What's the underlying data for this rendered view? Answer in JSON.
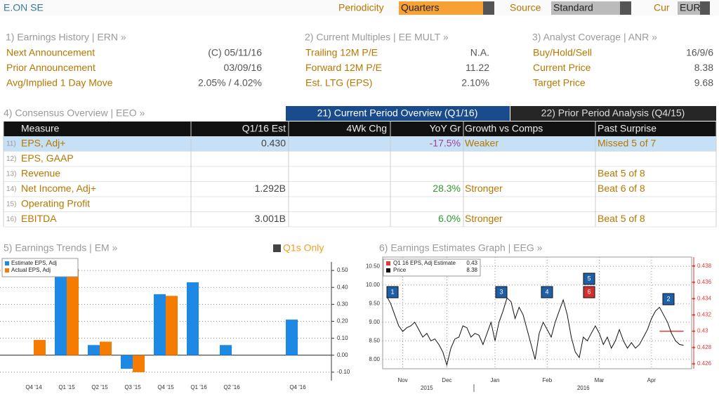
{
  "header": {
    "ticker": "E.ON SE",
    "periodicity_label": "Periodicity",
    "periodicity": "Quarters",
    "source_label": "Source",
    "source": "Standard",
    "cur_label": "Cur",
    "cur": "EUR"
  },
  "sections": [
    {
      "title": "1) Earnings History | ERN »",
      "rows": [
        {
          "label": "Next Announcement",
          "value": "(C)  05/11/16"
        },
        {
          "label": "Prior Announcement",
          "value": "03/09/16"
        },
        {
          "label": "Avg/Implied 1 Day Move",
          "value": "2.05% / 4.02%"
        }
      ]
    },
    {
      "title": "2) Current Multiples | EE MULT »",
      "rows": [
        {
          "label": "Trailing 12M P/E",
          "value": "N.A."
        },
        {
          "label": "Forward 12M P/E",
          "value": "11.22"
        },
        {
          "label": "Est. LTG (EPS)",
          "value": "2.10%"
        }
      ]
    },
    {
      "title": "3) Analyst Coverage | ANR »",
      "rows": [
        {
          "label": "Buy/Hold/Sell",
          "value": "16/9/6"
        },
        {
          "label": "Current Price",
          "value": "8.38"
        },
        {
          "label": "Target Price",
          "value": "9.68"
        }
      ]
    }
  ],
  "consensus": {
    "title": "4) Consensus Overview | EEO »",
    "tabs": [
      "21) Current Period Overview (Q1/16)",
      "22) Prior Period Analysis (Q4/15)"
    ]
  },
  "table": {
    "columns": [
      "Measure",
      "Q1/16 Est",
      "4Wk Chg",
      "YoY Gr",
      "Growth vs Comps",
      "Past Surprise"
    ],
    "rows": [
      {
        "num": "11)",
        "measure": "EPS, Adj+",
        "est": "0.430",
        "yoy": "-17.5%",
        "growth": "Weaker",
        "surprise": "Missed 5 of 7"
      },
      {
        "num": "12)",
        "measure": "EPS, GAAP"
      },
      {
        "num": "13)",
        "measure": "Revenue",
        "surprise": "Beat 5 of 8"
      },
      {
        "num": "14)",
        "measure": "Net Income, Adj+",
        "est": "1.292B",
        "yoy": "28.3%",
        "growth": "Stronger",
        "surprise": "Beat 6 of 8"
      },
      {
        "num": "15)",
        "measure": "Operating Profit"
      },
      {
        "num": "16)",
        "measure": "EBITDA",
        "est": "3.001B",
        "yoy": "6.0%",
        "growth": "Stronger",
        "surprise": "Beat 5 of 8"
      }
    ]
  },
  "chart_data": [
    {
      "type": "bar",
      "title": "5) Earnings Trends | EM »",
      "option": "Q1s Only",
      "categories": [
        "Q4 '14",
        "Q1 '15",
        "Q2 '15",
        "Q3 '15",
        "Q4 '15",
        "Q1 '16",
        "Q2 '16",
        null,
        "Q4 '16"
      ],
      "series": [
        {
          "name": "Estimate EPS, Adj",
          "color": "#1e88e5",
          "values": [
            null,
            0.47,
            0.06,
            -0.08,
            0.36,
            0.43,
            0.06,
            null,
            0.21
          ]
        },
        {
          "name": "Actual EPS, Adj",
          "color": "#f57c00",
          "values": [
            0.09,
            0.51,
            0.08,
            -0.1,
            0.35,
            null,
            null,
            null,
            null
          ]
        }
      ],
      "ylim": [
        -0.15,
        0.55
      ],
      "yticks": [
        {
          "value": -0.1,
          "label": "-0.10"
        },
        {
          "value": 0,
          "label": "0.00"
        },
        {
          "value": 0.1,
          "label": "0.10"
        },
        {
          "value": 0.2,
          "label": "0.20"
        },
        {
          "value": 0.3,
          "label": "0.30"
        },
        {
          "value": 0.4,
          "label": "0.40"
        },
        {
          "value": 0.5,
          "label": "0.50"
        }
      ],
      "grid": true,
      "legend": "top-left"
    },
    {
      "type": "line",
      "title": "6) Earnings Estimates Graph | EEG »",
      "series": [
        {
          "name": "Q1 16 EPS, Adj Estimate",
          "legend_value": "0.43",
          "color": "#e53935",
          "axis": "y2",
          "values": [
            null,
            null,
            null,
            null,
            null,
            null,
            null,
            null,
            null,
            null,
            null,
            null,
            null,
            null,
            null,
            null,
            null,
            null,
            null,
            null,
            null,
            null,
            null,
            null,
            null,
            null,
            null,
            null,
            null,
            null,
            null,
            null,
            null,
            null,
            null,
            null,
            null,
            null,
            null,
            null,
            null,
            null,
            null,
            null,
            null,
            null,
            null,
            null,
            null,
            null,
            null,
            null,
            null,
            null,
            null,
            null,
            null,
            null,
            null,
            null,
            null,
            null,
            null,
            null,
            null,
            null,
            null,
            null,
            0.43,
            0.43,
            0.43,
            0.43,
            0.43,
            0.43,
            0.43
          ]
        },
        {
          "name": "Price",
          "legend_value": "8.38",
          "color": "#111111",
          "values": [
            9.7,
            9.5,
            9.2,
            8.9,
            8.75,
            8.85,
            8.9,
            9.0,
            8.8,
            8.6,
            8.7,
            8.5,
            8.55,
            8.4,
            8.2,
            7.85,
            8.3,
            8.55,
            8.6,
            8.9,
            8.85,
            8.6,
            8.7,
            8.65,
            8.4,
            8.7,
            9.0,
            8.5,
            9.0,
            9.3,
            9.65,
            9.55,
            9.1,
            9.4,
            9.2,
            8.8,
            8.4,
            8.0,
            8.7,
            9.0,
            8.8,
            8.6,
            9.0,
            9.3,
            9.6,
            9.2,
            8.6,
            8.2,
            8.05,
            8.6,
            8.5,
            8.7,
            8.9,
            8.7,
            8.4,
            8.6,
            8.3,
            8.5,
            8.8,
            8.5,
            8.3,
            8.45,
            8.3,
            8.4,
            8.6,
            8.8,
            9.1,
            9.3,
            9.4,
            9.2,
            9.0,
            8.7,
            8.5,
            8.4,
            8.38
          ]
        }
      ],
      "xlim": [
        -1,
        76
      ],
      "xticks": [
        {
          "value": 4,
          "label": "Nov"
        },
        {
          "value": 15,
          "label": "Dec"
        },
        {
          "value": 27,
          "label": "Jan"
        },
        {
          "value": 40,
          "label": "Feb"
        },
        {
          "value": 53,
          "label": "Mar"
        },
        {
          "value": 66,
          "label": "Apr"
        }
      ],
      "year_ticks": [
        {
          "value": 10,
          "label": "2015"
        },
        {
          "value": 49,
          "label": "2016"
        }
      ],
      "ylim": [
        7.75,
        10.75
      ],
      "yticks": [
        {
          "value": 8,
          "label": "8.00"
        },
        {
          "value": 8.5,
          "label": "8.50"
        },
        {
          "value": 9,
          "label": "9.00"
        },
        {
          "value": 9.5,
          "label": "9.50"
        },
        {
          "value": 10,
          "label": "10.00"
        },
        {
          "value": 10.5,
          "label": "10.50"
        }
      ],
      "y2lim": [
        0.4254,
        0.4391
      ],
      "y2ticks": [
        0.426,
        0.428,
        0.43,
        0.432,
        0.434,
        0.436,
        0.438
      ],
      "events": [
        "1",
        "3",
        "4",
        "5",
        "6",
        "2"
      ],
      "grid": true,
      "legend": "top-left"
    }
  ]
}
